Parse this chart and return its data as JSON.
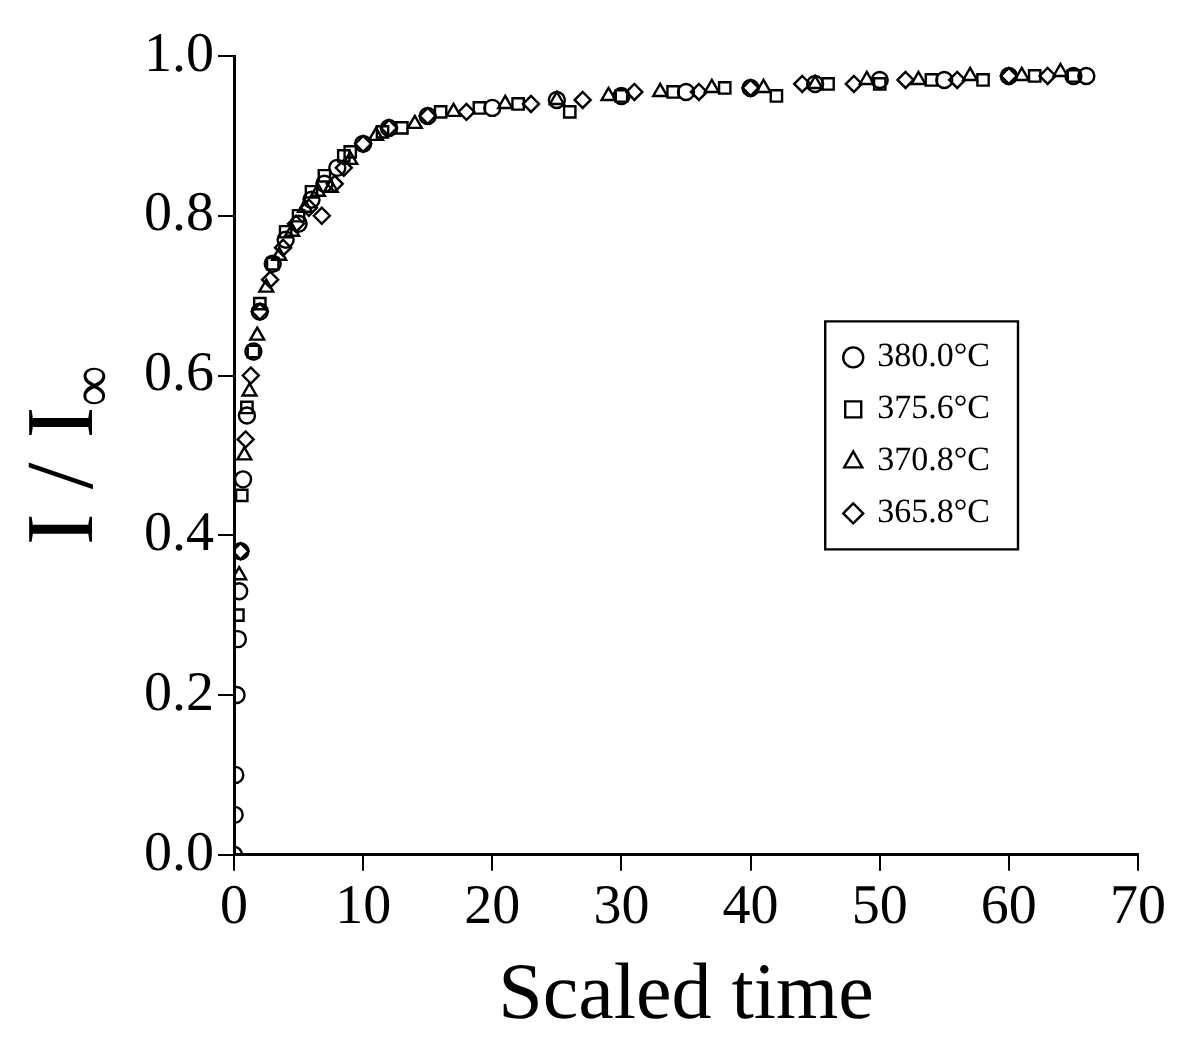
{
  "chart_data": {
    "type": "scatter",
    "xlabel": "Scaled time",
    "ylabel": "I / I$_{∞}$",
    "xlim": [
      0,
      70
    ],
    "ylim": [
      0,
      1
    ],
    "xticks": [
      0,
      10,
      20,
      30,
      40,
      50,
      60,
      70
    ],
    "yticks": [
      {
        "value": 0,
        "label": "0.0"
      },
      {
        "value": 0.2,
        "label": "0.2"
      },
      {
        "value": 0.4,
        "label": "0.4"
      },
      {
        "value": 0.6,
        "label": "0.6"
      },
      {
        "value": 0.8,
        "label": "0.8"
      },
      {
        "value": 1,
        "label": "1.0"
      }
    ],
    "grid": false,
    "legend": "right",
    "series": [
      {
        "name": "380.0°C",
        "color": "#000000",
        "marker": "circle",
        "x": [
          0,
          0.05,
          0.1,
          0.2,
          0.3,
          0.4,
          0.5,
          0.7,
          1,
          1.5,
          2,
          3,
          4,
          5,
          6,
          7,
          8,
          10,
          12,
          15,
          20,
          25,
          30,
          35,
          40,
          45,
          50,
          55,
          60,
          65,
          66
        ],
        "values": [
          0,
          0.05,
          0.1,
          0.2,
          0.27,
          0.33,
          0.38,
          0.47,
          0.55,
          0.63,
          0.68,
          0.74,
          0.77,
          0.79,
          0.82,
          0.84,
          0.86,
          0.89,
          0.91,
          0.925,
          0.935,
          0.945,
          0.95,
          0.955,
          0.96,
          0.965,
          0.97,
          0.97,
          0.975,
          0.975,
          0.975
        ]
      },
      {
        "name": "375.6°C",
        "color": "#000000",
        "marker": "square",
        "x": [
          0.3,
          0.6,
          1,
          1.5,
          2,
          3,
          4,
          5,
          6,
          7,
          8.5,
          9,
          11.5,
          13,
          16,
          19,
          22,
          26,
          30,
          34,
          38,
          42,
          46,
          50,
          54,
          58,
          62,
          65
        ],
        "values": [
          0.3,
          0.45,
          0.56,
          0.63,
          0.69,
          0.74,
          0.78,
          0.8,
          0.83,
          0.85,
          0.875,
          0.88,
          0.905,
          0.91,
          0.93,
          0.935,
          0.94,
          0.93,
          0.95,
          0.955,
          0.96,
          0.95,
          0.965,
          0.965,
          0.97,
          0.97,
          0.975,
          0.975
        ]
      },
      {
        "name": "370.8°C",
        "color": "#000000",
        "marker": "triangle",
        "x": [
          0.4,
          0.8,
          1.2,
          1.8,
          2.5,
          3.5,
          4.5,
          5.5,
          6.5,
          7.5,
          9,
          11,
          14,
          17,
          21,
          25,
          29,
          33,
          37,
          41,
          45,
          49,
          53,
          57,
          61,
          64
        ],
        "values": [
          0.35,
          0.5,
          0.58,
          0.65,
          0.71,
          0.75,
          0.78,
          0.81,
          0.83,
          0.835,
          0.87,
          0.9,
          0.915,
          0.93,
          0.94,
          0.945,
          0.95,
          0.955,
          0.96,
          0.96,
          0.965,
          0.97,
          0.97,
          0.975,
          0.975,
          0.98
        ]
      },
      {
        "name": "365.8°C",
        "color": "#000000",
        "marker": "diamond",
        "x": [
          0.5,
          0.9,
          1.3,
          2,
          2.8,
          3.8,
          4.8,
          5.8,
          6.8,
          7.8,
          8.5,
          10,
          12,
          15,
          18,
          23,
          27,
          31,
          36,
          40,
          44,
          48,
          52,
          56,
          60,
          63
        ],
        "values": [
          0.38,
          0.52,
          0.6,
          0.68,
          0.72,
          0.76,
          0.79,
          0.81,
          0.8,
          0.84,
          0.86,
          0.89,
          0.91,
          0.925,
          0.93,
          0.94,
          0.945,
          0.955,
          0.955,
          0.96,
          0.965,
          0.965,
          0.97,
          0.97,
          0.975,
          0.975
        ]
      }
    ]
  }
}
